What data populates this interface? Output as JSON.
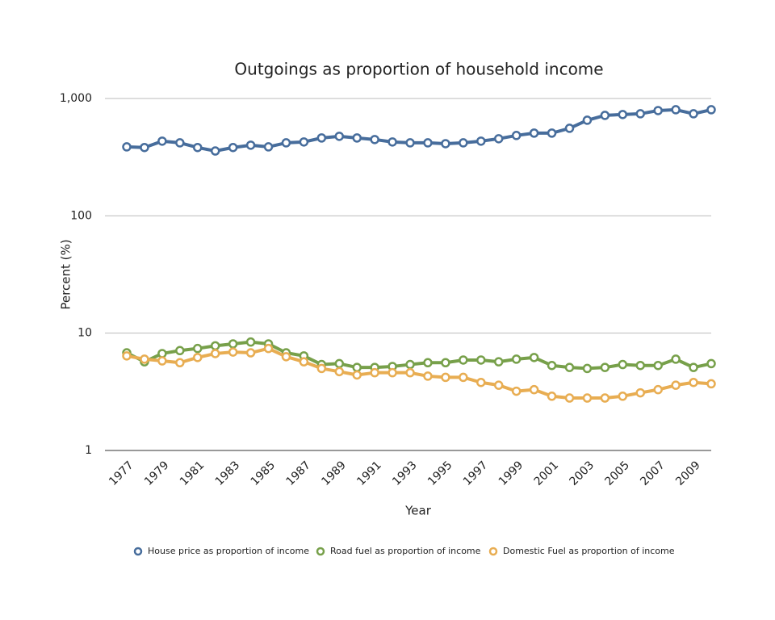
{
  "chart_data": {
    "type": "line",
    "title": "Outgoings as proportion of household income",
    "x_label": "Year",
    "y_label": "Percent (%)",
    "log_scale": true,
    "grid": true,
    "legend": "bottom",
    "categories": [
      "1977",
      null,
      "1979",
      null,
      "1981",
      null,
      "1983",
      null,
      "1985",
      null,
      "1987",
      null,
      "1989",
      null,
      "1991",
      null,
      "1993",
      null,
      "1995",
      null,
      "1997",
      null,
      "1999",
      null,
      "2001",
      null,
      "2003",
      null,
      "2005",
      null,
      "2007",
      null,
      "2009",
      null
    ],
    "ylim": [
      1,
      1000
    ],
    "yticks": [
      1,
      10,
      100,
      {
        "value": 1000,
        "label": "1,000"
      }
    ],
    "series": [
      {
        "name": "House price as proportion of income",
        "color": "#476d9c",
        "values": [
          387,
          382,
          433,
          419,
          382,
          357,
          382,
          400,
          387,
          419,
          426,
          461,
          476,
          461,
          447,
          426,
          419,
          419,
          412,
          419,
          433,
          454,
          484,
          507,
          507,
          557,
          653,
          718,
          730,
          741,
          789,
          802,
          741,
          802
        ]
      },
      {
        "name": "Road fuel as proportion of income",
        "color": "#77a04a",
        "values": [
          6.8,
          5.7,
          6.7,
          7.1,
          7.4,
          7.8,
          8.1,
          8.4,
          8.1,
          6.8,
          6.4,
          5.4,
          5.5,
          5.1,
          5.1,
          5.2,
          5.4,
          5.6,
          5.6,
          5.9,
          5.9,
          5.7,
          6.0,
          6.2,
          5.3,
          5.1,
          5.0,
          5.1,
          5.4,
          5.3,
          5.3,
          6.0,
          5.1,
          5.5
        ]
      },
      {
        "name": "Domestic Fuel as proportion of income",
        "color": "#e8ad52",
        "values": [
          6.4,
          6.0,
          5.8,
          5.6,
          6.2,
          6.7,
          6.9,
          6.8,
          7.4,
          6.3,
          5.7,
          5.0,
          4.7,
          4.4,
          4.6,
          4.6,
          4.6,
          4.3,
          4.2,
          4.2,
          3.8,
          3.6,
          3.2,
          3.3,
          2.9,
          2.8,
          2.8,
          2.8,
          2.9,
          3.1,
          3.3,
          3.6,
          3.8,
          3.7
        ]
      }
    ]
  }
}
